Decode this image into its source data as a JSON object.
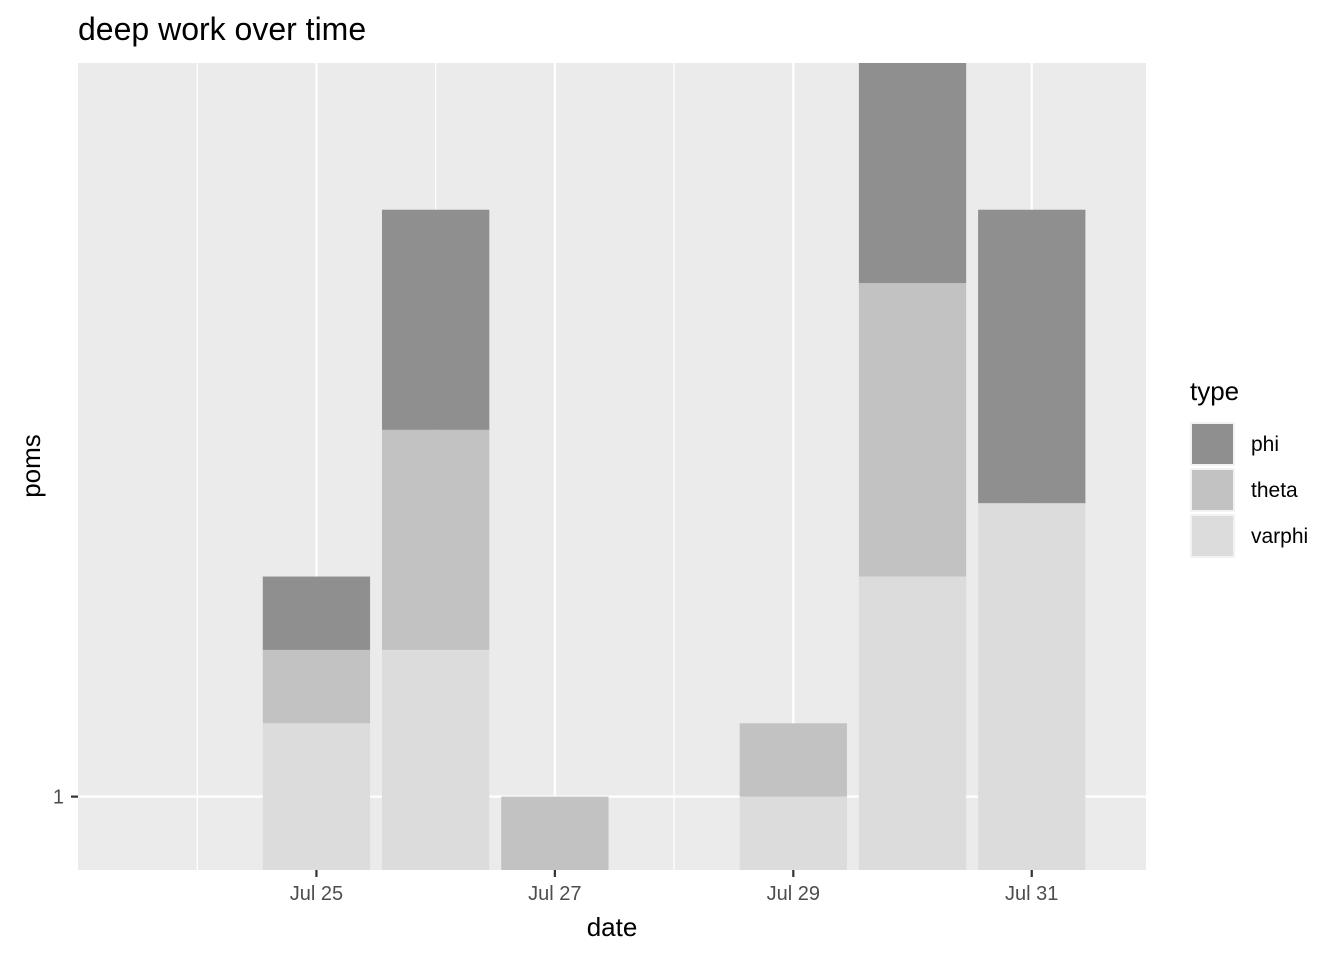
{
  "chart_data": {
    "type": "bar",
    "stacked": true,
    "title": "deep work over time",
    "xlabel": "date",
    "ylabel": "poms",
    "x_ticks": [
      "Jul 25",
      "Jul 27",
      "Jul 29",
      "Jul 31"
    ],
    "y_ticks": [
      "1"
    ],
    "xlim": [
      "2024-07-23 00:00",
      "2024-07-31 23:00"
    ],
    "ylim": [
      0,
      11
    ],
    "grid": true,
    "legend": {
      "title": "type",
      "position": "right"
    },
    "categories": [
      "2024-07-25",
      "2024-07-26",
      "2024-07-27",
      "2024-07-29",
      "2024-07-30",
      "2024-07-31"
    ],
    "series": [
      {
        "name": "varphi",
        "color": "#DCDCDC",
        "values": [
          2,
          3,
          0,
          1,
          4,
          5
        ]
      },
      {
        "name": "theta",
        "color": "#C2C2C2",
        "values": [
          1,
          3,
          1,
          1,
          4,
          0
        ]
      },
      {
        "name": "phi",
        "color": "#8F8F8F",
        "values": [
          1,
          3,
          0,
          0,
          3,
          4
        ]
      }
    ],
    "legend_order": [
      "phi",
      "theta",
      "varphi"
    ]
  }
}
